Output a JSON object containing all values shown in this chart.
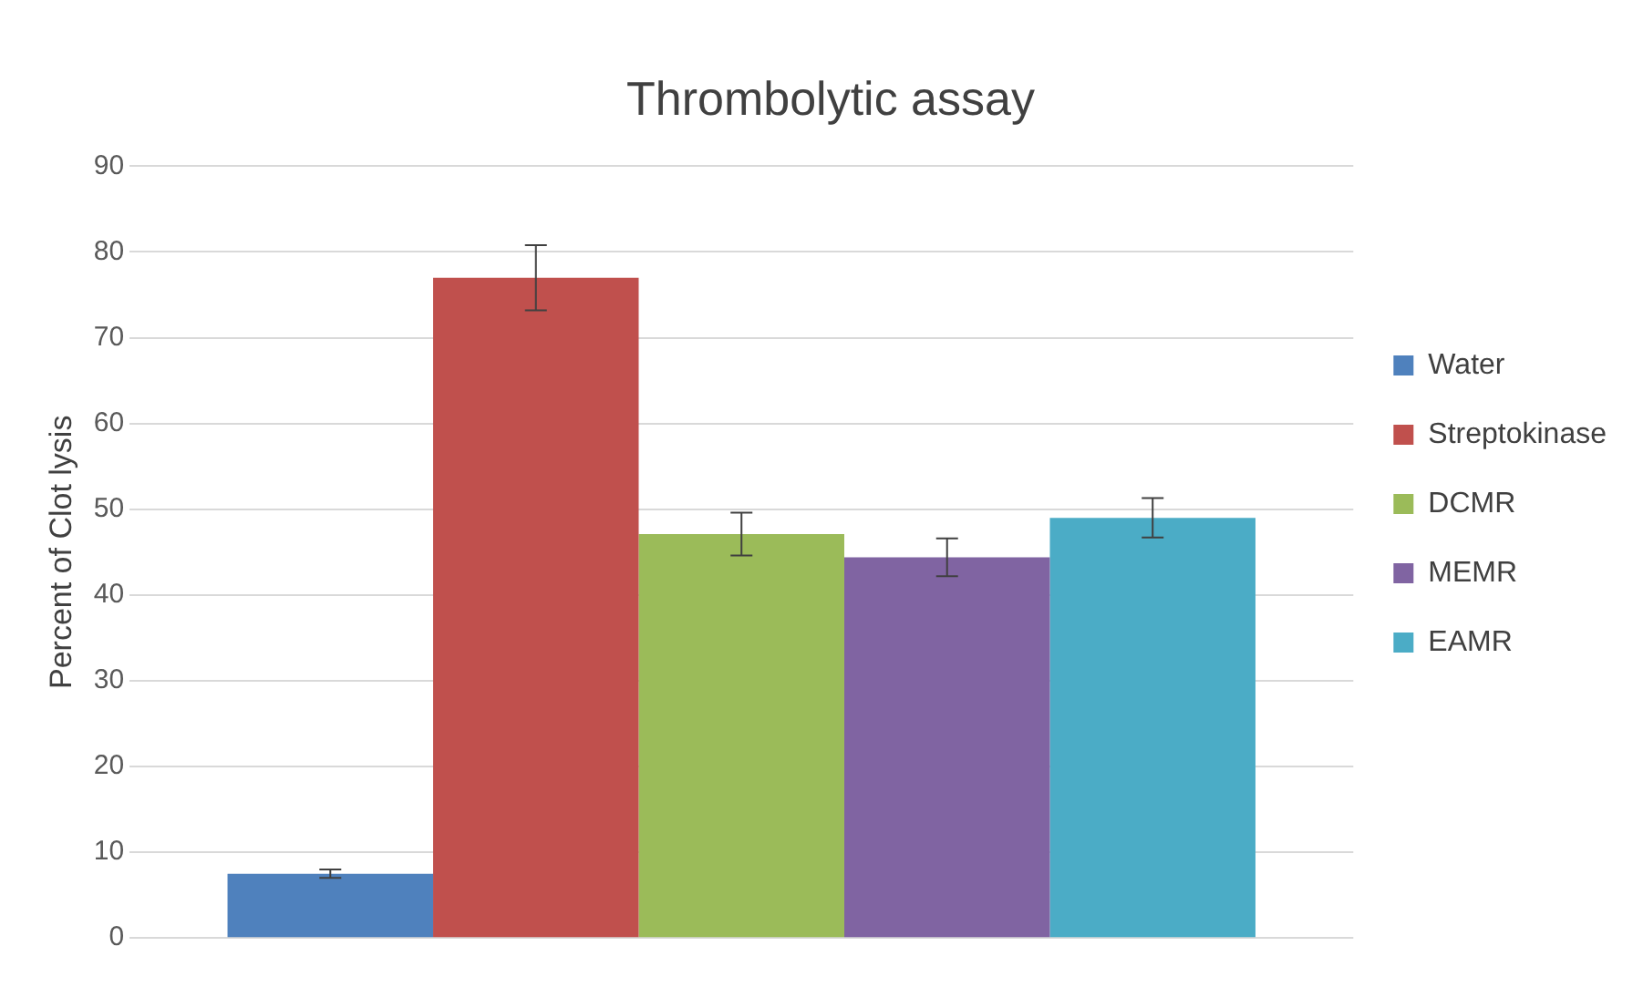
{
  "chart_data": {
    "type": "bar",
    "title": "Thrombolytic assay",
    "ylabel": "Percent of Clot lysis",
    "categories": [
      null
    ],
    "series": [
      {
        "name": "Water",
        "color": "#4f81bd",
        "values": [
          7.5
        ],
        "errors": [
          0.5
        ]
      },
      {
        "name": "Streptokinase",
        "color": "#c0504d",
        "values": [
          77
        ],
        "errors": [
          3.8
        ]
      },
      {
        "name": "DCMR",
        "color": "#9bbb59",
        "values": [
          47.1
        ],
        "errors": [
          2.5
        ]
      },
      {
        "name": "MEMR",
        "color": "#8064a2",
        "values": [
          44.4
        ],
        "errors": [
          2.2
        ]
      },
      {
        "name": "EAMR",
        "color": "#4bacc6",
        "values": [
          49
        ],
        "errors": [
          2.3
        ]
      }
    ],
    "ylim": [
      0,
      90
    ],
    "yticks": [
      0,
      10,
      20,
      30,
      40,
      50,
      60,
      70,
      80,
      90
    ],
    "grid": "y",
    "legend": "right"
  }
}
